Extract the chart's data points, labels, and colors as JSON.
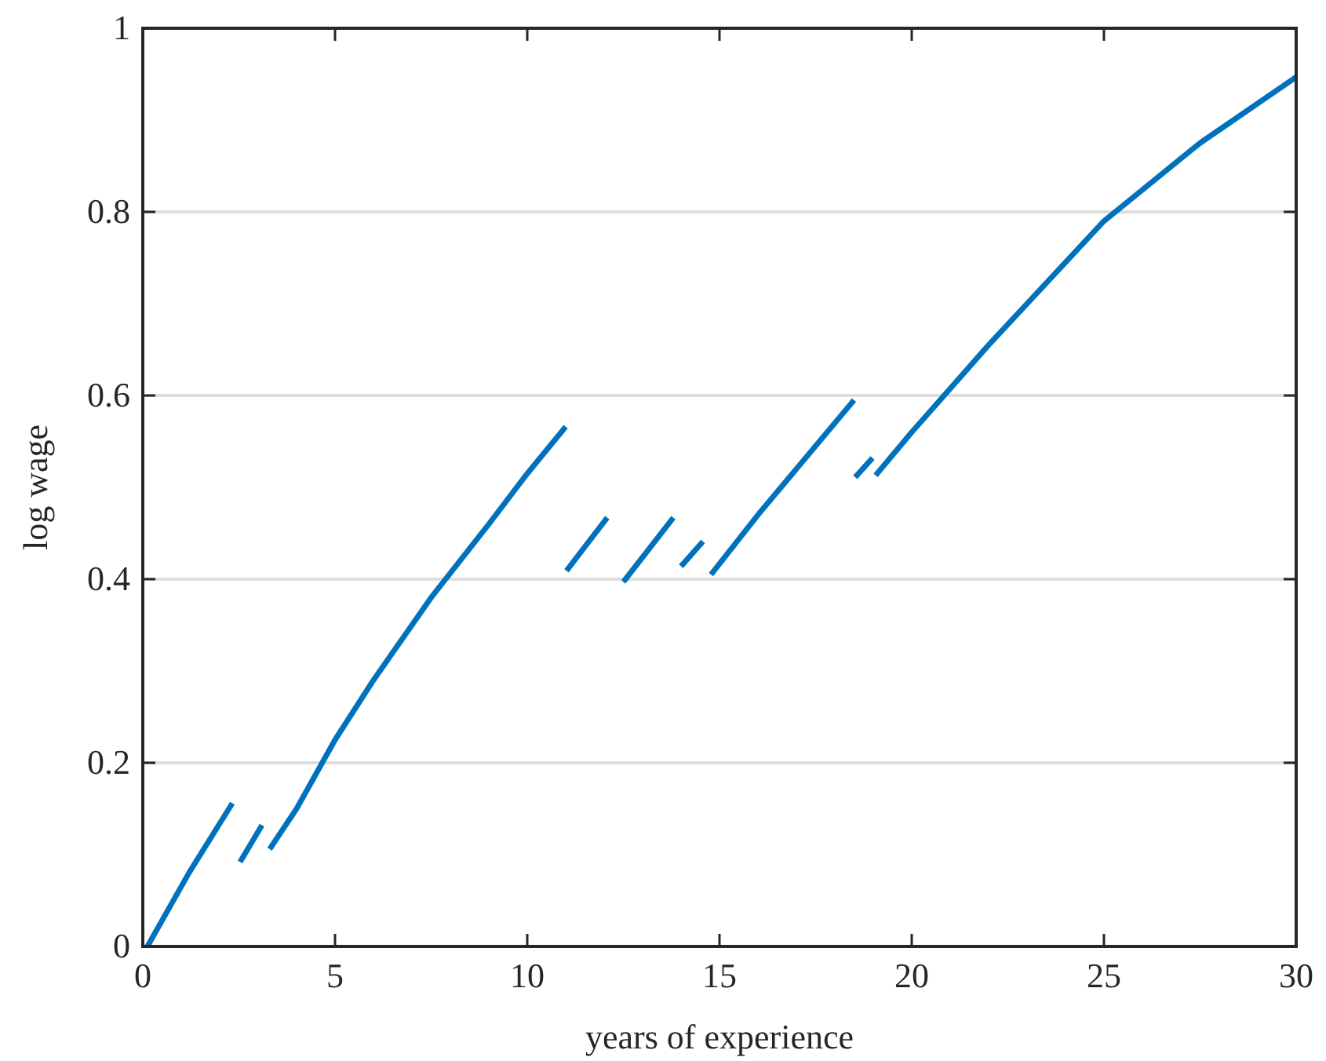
{
  "chart_data": {
    "type": "line",
    "xlabel": "years of experience",
    "ylabel": "log wage",
    "xlim": [
      0,
      30
    ],
    "ylim": [
      0,
      1
    ],
    "xticks": [
      0,
      5,
      10,
      15,
      20,
      25,
      30
    ],
    "yticks": [
      0,
      0.2,
      0.4,
      0.6,
      0.8,
      1
    ],
    "grid": "y",
    "marker": "none",
    "line_style": "solid",
    "series": [
      {
        "color": "#0072bd",
        "x": [
          0.12,
          1.2,
          2.33,
          2.43,
          2.53,
          3.1,
          3.2,
          3.3,
          4.0,
          5.0,
          6.0,
          7.5,
          9.0,
          10.0,
          11.0,
          11.01,
          11.02,
          12.08,
          12.3,
          12.5,
          13.8,
          13.9,
          14.0,
          14.57,
          14.68,
          14.78,
          16.0,
          17.3,
          18.5,
          18.52,
          18.53,
          18.98,
          19.02,
          19.06,
          20.0,
          22.0,
          25.0,
          27.5,
          30.0
        ],
        "values": [
          0.0,
          0.08,
          0.156,
          null,
          0.092,
          0.132,
          null,
          0.106,
          0.15,
          0.225,
          0.29,
          0.38,
          0.46,
          0.515,
          0.566,
          null,
          0.409,
          0.467,
          null,
          0.397,
          0.467,
          null,
          0.414,
          0.441,
          null,
          0.405,
          0.47,
          0.535,
          0.595,
          null,
          0.511,
          0.532,
          null,
          0.513,
          0.56,
          0.655,
          0.79,
          0.875,
          0.947
        ]
      }
    ]
  }
}
